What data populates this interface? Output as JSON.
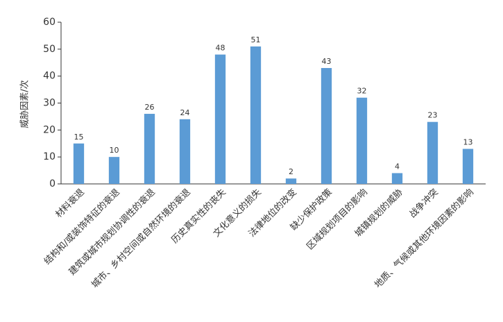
{
  "chart_data": {
    "type": "bar",
    "y_label": "威胁因素/次",
    "categories": [
      "材料衰退",
      "结构和/或装饰特征的衰退",
      "建筑或城市规划协调性的衰退",
      "城市、乡村空间或自然环境的衰退",
      "历史真实性的丧失",
      "文化意义的损失",
      "法律地位的改变",
      "缺少保护政策",
      "区域规划项目的影响",
      "城镇规划的威胁",
      "战争冲突",
      "地质、气候或其他环境因素的影响"
    ],
    "values": [
      15,
      10,
      26,
      24,
      48,
      51,
      2,
      43,
      32,
      4,
      23,
      13
    ],
    "color": "#5b9bd5",
    "ylim": [
      0,
      60
    ],
    "yticks": [
      0,
      10,
      20,
      30,
      40,
      50,
      60
    ],
    "grid": false
  }
}
